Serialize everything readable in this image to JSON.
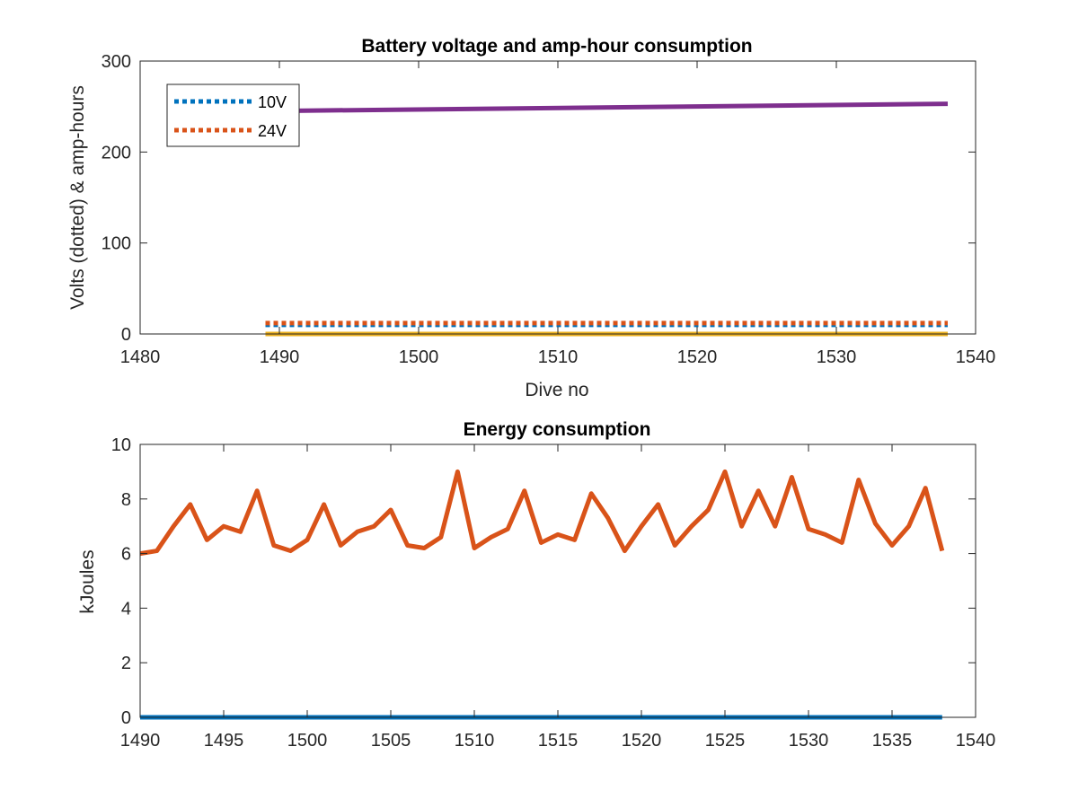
{
  "chart_data": [
    {
      "type": "line",
      "title": "Battery voltage and amp-hour consumption",
      "xlabel": "Dive no",
      "ylabel": "Volts (dotted) & amp-hours",
      "xlim": [
        1480,
        1540
      ],
      "ylim": [
        0,
        300
      ],
      "xticks": [
        1480,
        1490,
        1500,
        1510,
        1520,
        1530,
        1540
      ],
      "yticks": [
        0,
        100,
        200,
        300
      ],
      "grid": false,
      "legend_position": "top-left",
      "series": [
        {
          "name": "10V",
          "style": "dotted",
          "color": "#0072BD",
          "x": [
            1489,
            1538
          ],
          "y": [
            10,
            10
          ]
        },
        {
          "name": "24V",
          "style": "dotted",
          "color": "#D95319",
          "x": [
            1489,
            1538
          ],
          "y": [
            12,
            12
          ]
        },
        {
          "style": "solid",
          "color": "#EDB120",
          "x": [
            1489,
            1538
          ],
          "y": [
            0,
            0
          ]
        },
        {
          "style": "solid",
          "color": "#7E2F8E",
          "x": [
            1489,
            1538
          ],
          "y": [
            245,
            253
          ]
        }
      ]
    },
    {
      "type": "line",
      "title": "Energy consumption",
      "xlabel": "",
      "ylabel": "kJoules",
      "xlim": [
        1490,
        1540
      ],
      "ylim": [
        0,
        10
      ],
      "xticks": [
        1490,
        1495,
        1500,
        1505,
        1510,
        1515,
        1520,
        1525,
        1530,
        1535,
        1540
      ],
      "yticks": [
        0,
        2,
        4,
        6,
        8,
        10
      ],
      "grid": false,
      "series": [
        {
          "style": "solid",
          "color": "#0072BD",
          "x": [
            1490,
            1538
          ],
          "y": [
            0,
            0
          ]
        },
        {
          "style": "solid",
          "color": "#D95319",
          "x": [
            1490,
            1491,
            1492,
            1493,
            1494,
            1495,
            1496,
            1497,
            1498,
            1499,
            1500,
            1501,
            1502,
            1503,
            1504,
            1505,
            1506,
            1507,
            1508,
            1509,
            1510,
            1511,
            1512,
            1513,
            1514,
            1515,
            1516,
            1517,
            1518,
            1519,
            1520,
            1521,
            1522,
            1523,
            1524,
            1525,
            1526,
            1527,
            1528,
            1529,
            1530,
            1531,
            1532,
            1533,
            1534,
            1535,
            1536,
            1537,
            1538
          ],
          "y": [
            6.0,
            6.1,
            7.0,
            7.8,
            6.5,
            7.0,
            6.8,
            8.3,
            6.3,
            6.1,
            6.5,
            7.8,
            6.3,
            6.8,
            7.0,
            7.6,
            6.3,
            6.2,
            6.6,
            9.0,
            6.2,
            6.6,
            6.9,
            8.3,
            6.4,
            6.7,
            6.5,
            8.2,
            7.3,
            6.1,
            7.0,
            7.8,
            6.3,
            7.0,
            7.6,
            9.0,
            7.0,
            8.3,
            7.0,
            8.8,
            6.9,
            6.7,
            6.4,
            8.7,
            7.1,
            6.3,
            7.0,
            8.4,
            6.1
          ]
        }
      ]
    }
  ]
}
